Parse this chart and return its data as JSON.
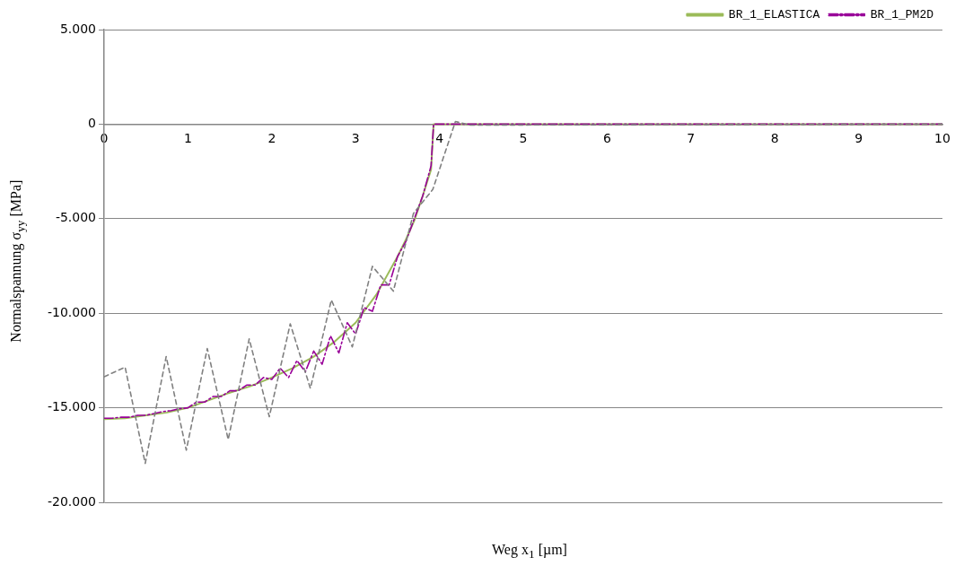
{
  "chart_data": {
    "type": "line",
    "xlabel": "Weg x$_{1}$ [µm]",
    "ylabel": "Normalspannung σ$_{yy}$  [MPa]",
    "xlim": [
      0,
      10
    ],
    "xticks": [
      0,
      1,
      2,
      3,
      4,
      5,
      6,
      7,
      8,
      9,
      10
    ],
    "ylim": [
      -20000,
      5000
    ],
    "yticks": [
      {
        "value": -20000,
        "label": "-20.000"
      },
      {
        "value": -15000,
        "label": "-15.000"
      },
      {
        "value": -10000,
        "label": "-10.000"
      },
      {
        "value": -5000,
        "label": "-5.000"
      },
      0,
      {
        "value": 5000,
        "label": "5.000"
      }
    ],
    "grid": "y",
    "legend": "top right",
    "marker": "none",
    "series": [
      {
        "name": "BR_1_ELASTICA",
        "color": "#9bbb59",
        "line_style": "solid",
        "x": [
          0,
          0.25,
          0.5,
          0.75,
          1,
          1.25,
          1.5,
          1.75,
          2,
          2.25,
          2.5,
          2.75,
          3,
          3.25,
          3.5,
          3.6,
          3.7,
          3.8,
          3.9,
          3.93,
          10
        ],
        "values": [
          -15600,
          -15550,
          -15400,
          -15250,
          -15000,
          -14600,
          -14200,
          -13850,
          -13400,
          -12900,
          -12300,
          -11500,
          -10500,
          -9000,
          -7000,
          -6100,
          -5100,
          -3800,
          -2400,
          0,
          0
        ]
      },
      {
        "name": "BR_1_PM2D",
        "color": "#990099",
        "line_style": "dashed",
        "x": [
          0,
          0.1,
          0.2,
          0.3,
          0.4,
          0.5,
          0.6,
          0.7,
          0.8,
          0.9,
          1,
          1.1,
          1.2,
          1.3,
          1.4,
          1.5,
          1.6,
          1.7,
          1.8,
          1.9,
          2,
          2.1,
          2.2,
          2.3,
          2.4,
          2.5,
          2.6,
          2.7,
          2.8,
          2.9,
          3,
          3.1,
          3.2,
          3.3,
          3.4,
          3.5,
          3.6,
          3.7,
          3.8,
          3.9,
          3.93,
          10
        ],
        "values": [
          -15550,
          -15550,
          -15500,
          -15500,
          -15400,
          -15400,
          -15300,
          -15200,
          -15150,
          -15050,
          -15000,
          -14700,
          -14700,
          -14400,
          -14400,
          -14100,
          -14100,
          -13800,
          -13800,
          -13400,
          -13500,
          -12900,
          -13400,
          -12500,
          -13100,
          -12000,
          -12700,
          -11200,
          -12100,
          -10500,
          -11100,
          -9700,
          -9900,
          -8500,
          -8500,
          -7000,
          -6200,
          -5000,
          -3800,
          -2200,
          0,
          0
        ]
      },
      {
        "color": "#808080",
        "line_style": "dotted",
        "x": [
          0,
          0.25,
          0.49,
          0.74,
          0.98,
          1.23,
          1.48,
          1.73,
          1.97,
          2.22,
          2.46,
          2.71,
          2.96,
          3.2,
          3.45,
          3.69,
          3.92,
          4.19,
          4.36,
          10
        ],
        "values": [
          -13360,
          -12850,
          -17940,
          -12290,
          -17240,
          -11870,
          -16680,
          -11360,
          -15470,
          -10560,
          -13970,
          -9300,
          -11780,
          -7520,
          -8830,
          -4720,
          -3460,
          140,
          -50,
          0
        ]
      }
    ]
  }
}
